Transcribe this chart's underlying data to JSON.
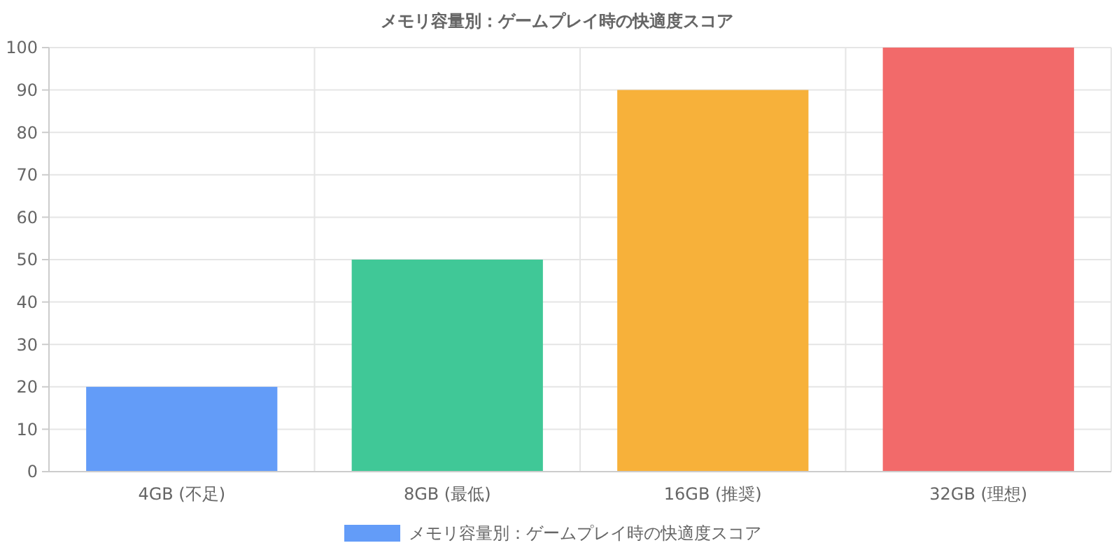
{
  "chart_data": {
    "type": "bar",
    "title": "メモリ容量別：ゲームプレイ時の快適度スコア",
    "categories": [
      "4GB (不足)",
      "8GB (最低)",
      "16GB (推奨)",
      "32GB (理想)"
    ],
    "series": [
      {
        "name": "メモリ容量別：ゲームプレイ時の快適度スコア",
        "values": [
          20,
          50,
          90,
          100
        ],
        "colors": [
          "#639cf8",
          "#40c897",
          "#f7b13a",
          "#f26a6a"
        ]
      }
    ],
    "ylim": [
      0,
      100
    ],
    "yticks": [
      0,
      10,
      20,
      30,
      40,
      50,
      60,
      70,
      80,
      90,
      100
    ],
    "grid": true,
    "legend": "bottom"
  }
}
